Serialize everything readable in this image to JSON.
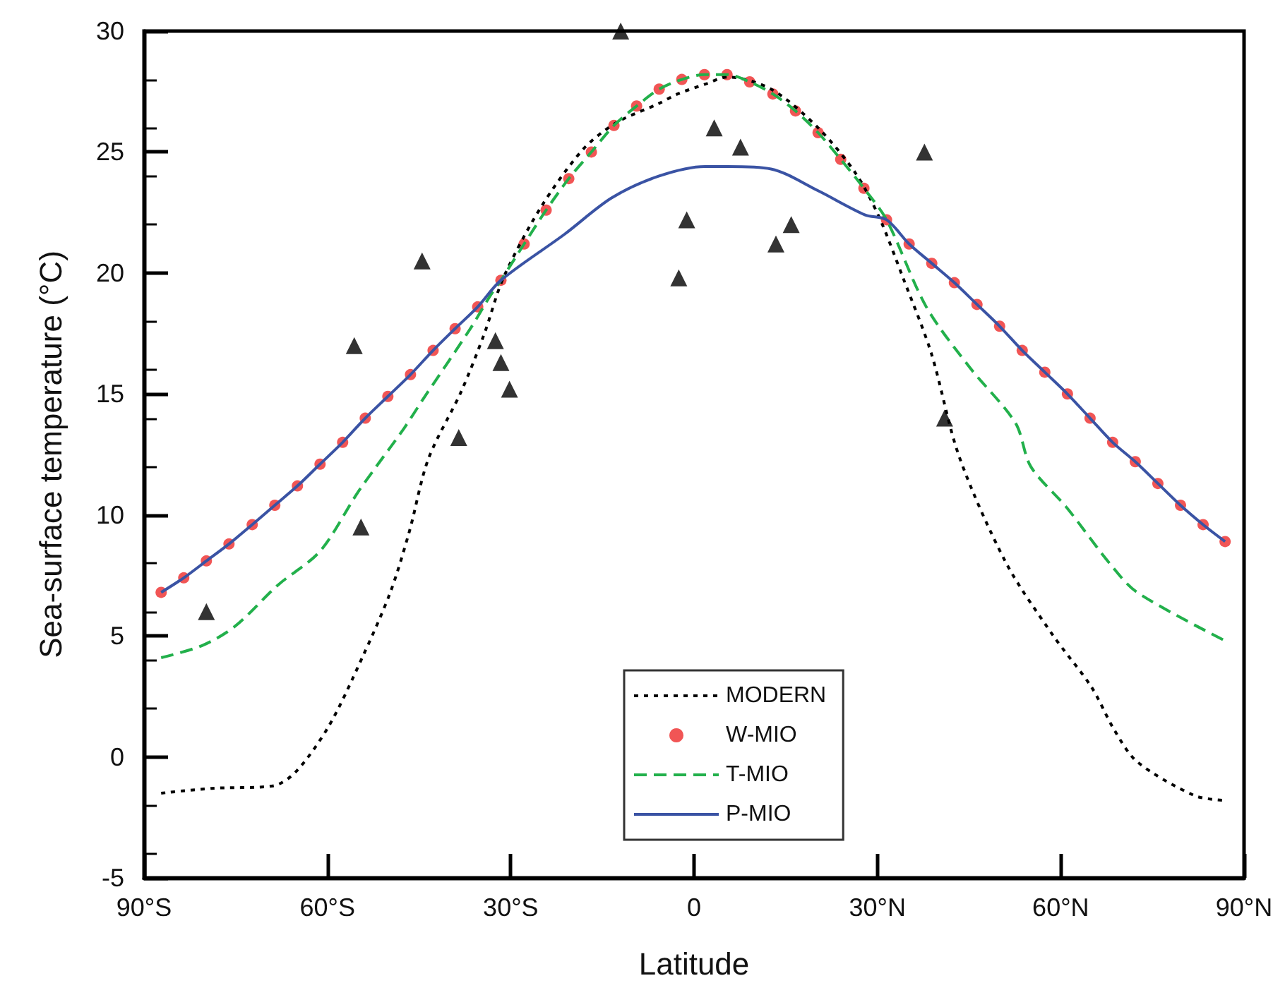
{
  "chart_data": {
    "type": "line",
    "xlabel": "Latitude",
    "ylabel": "Sea-surface temperature (°C)",
    "xlim": [
      -90,
      90
    ],
    "ylim": [
      -5,
      30
    ],
    "xticks": [
      {
        "value": -90,
        "label": "90°S"
      },
      {
        "value": -60,
        "label": "60°S"
      },
      {
        "value": -30,
        "label": "30°S"
      },
      {
        "value": 0,
        "label": "0"
      },
      {
        "value": 30,
        "label": "30°N"
      },
      {
        "value": 60,
        "label": "60°N"
      },
      {
        "value": 90,
        "label": "90°N"
      }
    ],
    "yticks": [
      -5,
      0,
      5,
      10,
      15,
      20,
      25,
      30
    ],
    "grid": false,
    "legend": "bottom",
    "series": [
      {
        "name": "MODERN",
        "type": "line",
        "line_style": "dotted",
        "marker": "none",
        "color": "#000000",
        "x": [
          -87.2,
          -78.9,
          -68.9,
          -65.1,
          -59.7,
          -54.3,
          -49.7,
          -46.6,
          -43.5,
          -38.1,
          -34.3,
          -31.2,
          -25.1,
          -18.2,
          -12.8,
          -5.8,
          -2.7,
          1.8,
          5.5,
          12.6,
          20.3,
          26.5,
          30.3,
          34.2,
          38.8,
          43.4,
          51.1,
          58.8,
          65,
          68.8,
          72.5,
          81.9,
          86.9
        ],
        "values": [
          -1.5,
          -1.3,
          -1.2,
          -0.6,
          1.3,
          4.1,
          6.8,
          9.3,
          12.3,
          15.1,
          17.5,
          19.8,
          22.7,
          25.1,
          26.2,
          27,
          27.4,
          27.8,
          28.1,
          27.6,
          26,
          24.1,
          22.3,
          19.8,
          16.7,
          12.4,
          8,
          5,
          2.9,
          1.1,
          -0.2,
          -1.6,
          -1.8
        ]
      },
      {
        "name": "W-MIO",
        "type": "scatter",
        "marker": "circle",
        "color": "#ee2a2a",
        "x": [
          -87.2,
          -83.5,
          -79.8,
          -76.1,
          -72.3,
          -68.6,
          -64.9,
          -61.2,
          -57.5,
          -53.8,
          -50.1,
          -46.4,
          -42.7,
          -39.1,
          -35.4,
          -31.6,
          -27.8,
          -24.2,
          -20.5,
          -16.8,
          -13.1,
          -9.4,
          -5.7,
          -2,
          1.7,
          5.4,
          9.1,
          12.9,
          16.6,
          20.3,
          24,
          27.8,
          31.5,
          35.2,
          38.9,
          42.6,
          46.3,
          50,
          53.7,
          57.4,
          61.1,
          64.8,
          68.5,
          72.2,
          75.9,
          79.6,
          83.3,
          86.9
        ],
        "values": [
          6.8,
          7.4,
          8.1,
          8.8,
          9.6,
          10.4,
          11.2,
          12.1,
          13,
          14,
          14.9,
          15.8,
          16.8,
          17.7,
          18.6,
          19.7,
          21.2,
          22.6,
          23.9,
          25,
          26.1,
          26.9,
          27.6,
          28,
          28.2,
          28.2,
          27.9,
          27.4,
          26.7,
          25.8,
          24.7,
          23.5,
          22.2,
          21.2,
          20.4,
          19.6,
          18.7,
          17.8,
          16.8,
          15.9,
          15,
          14,
          13,
          12.2,
          11.3,
          10.4,
          9.6,
          8.9
        ]
      },
      {
        "name": "T-MIO",
        "type": "line",
        "line_style": "dashed",
        "marker": "none",
        "color": "#22b04b",
        "x": [
          -87.2,
          -80.5,
          -75.1,
          -68.1,
          -61.2,
          -55.1,
          -52,
          -47.4,
          -44.3,
          -36.6,
          -33.5,
          -31.6,
          -27.8,
          -24.2,
          -20.5,
          -16.8,
          -13.1,
          -9.4,
          -5.7,
          -2,
          1.7,
          5.4,
          9.1,
          12.9,
          16.6,
          20.3,
          24,
          27.8,
          31.5,
          38,
          45.1,
          52.6,
          55.1,
          61,
          68,
          72.5,
          86.9
        ],
        "values": [
          4.1,
          4.6,
          5.4,
          7.1,
          8.5,
          10.9,
          12,
          13.6,
          14.8,
          17.7,
          19,
          19.7,
          21.2,
          22.6,
          23.9,
          25,
          26.1,
          26.9,
          27.6,
          28,
          28.2,
          28.2,
          27.9,
          27.4,
          26.7,
          25.8,
          24.7,
          23.5,
          22.2,
          18.6,
          16.1,
          13.8,
          12,
          10.3,
          8,
          6.8,
          4.8
        ]
      },
      {
        "name": "P-MIO",
        "type": "line",
        "line_style": "solid",
        "marker": "none",
        "color": "#3a53a4",
        "x": [
          -87.2,
          -83.5,
          -79.8,
          -76.1,
          -72.3,
          -68.6,
          -64.9,
          -61.2,
          -57.5,
          -53.8,
          -50.1,
          -46.4,
          -42.7,
          -39.1,
          -35.4,
          -31.6,
          -21.2,
          -13.5,
          -5.8,
          1.8,
          5.5,
          12.6,
          20.3,
          28,
          31.5,
          35.2,
          38.9,
          42.6,
          46.3,
          50,
          53.7,
          57.4,
          61.1,
          64.8,
          68.5,
          72.2,
          75.9,
          79.6,
          83.3,
          86.9
        ],
        "values": [
          6.8,
          7.4,
          8.1,
          8.8,
          9.6,
          10.4,
          11.2,
          12.1,
          13,
          14,
          14.9,
          15.8,
          16.8,
          17.7,
          18.6,
          19.7,
          21.6,
          23.1,
          24,
          24.4,
          24.4,
          24.3,
          23.4,
          22.4,
          22.2,
          21.2,
          20.4,
          19.6,
          18.7,
          17.8,
          16.8,
          15.9,
          15,
          14,
          13,
          12.2,
          11.3,
          10.4,
          9.6,
          8.9
        ]
      },
      {
        "type": "scatter",
        "marker": "triangle",
        "color": "#000000",
        "x": [
          -79.8,
          -55.6,
          -54.5,
          -44.5,
          -38.5,
          -32.5,
          -31.6,
          -30.2,
          -12,
          -2.5,
          -1.2,
          3.3,
          7.6,
          13.4,
          15.9,
          37.7,
          41
        ],
        "values": [
          6,
          17,
          9.5,
          20.5,
          13.2,
          17.2,
          16.3,
          15.2,
          30,
          19.8,
          22.2,
          26,
          25.2,
          21.2,
          22,
          25,
          14
        ]
      }
    ]
  }
}
